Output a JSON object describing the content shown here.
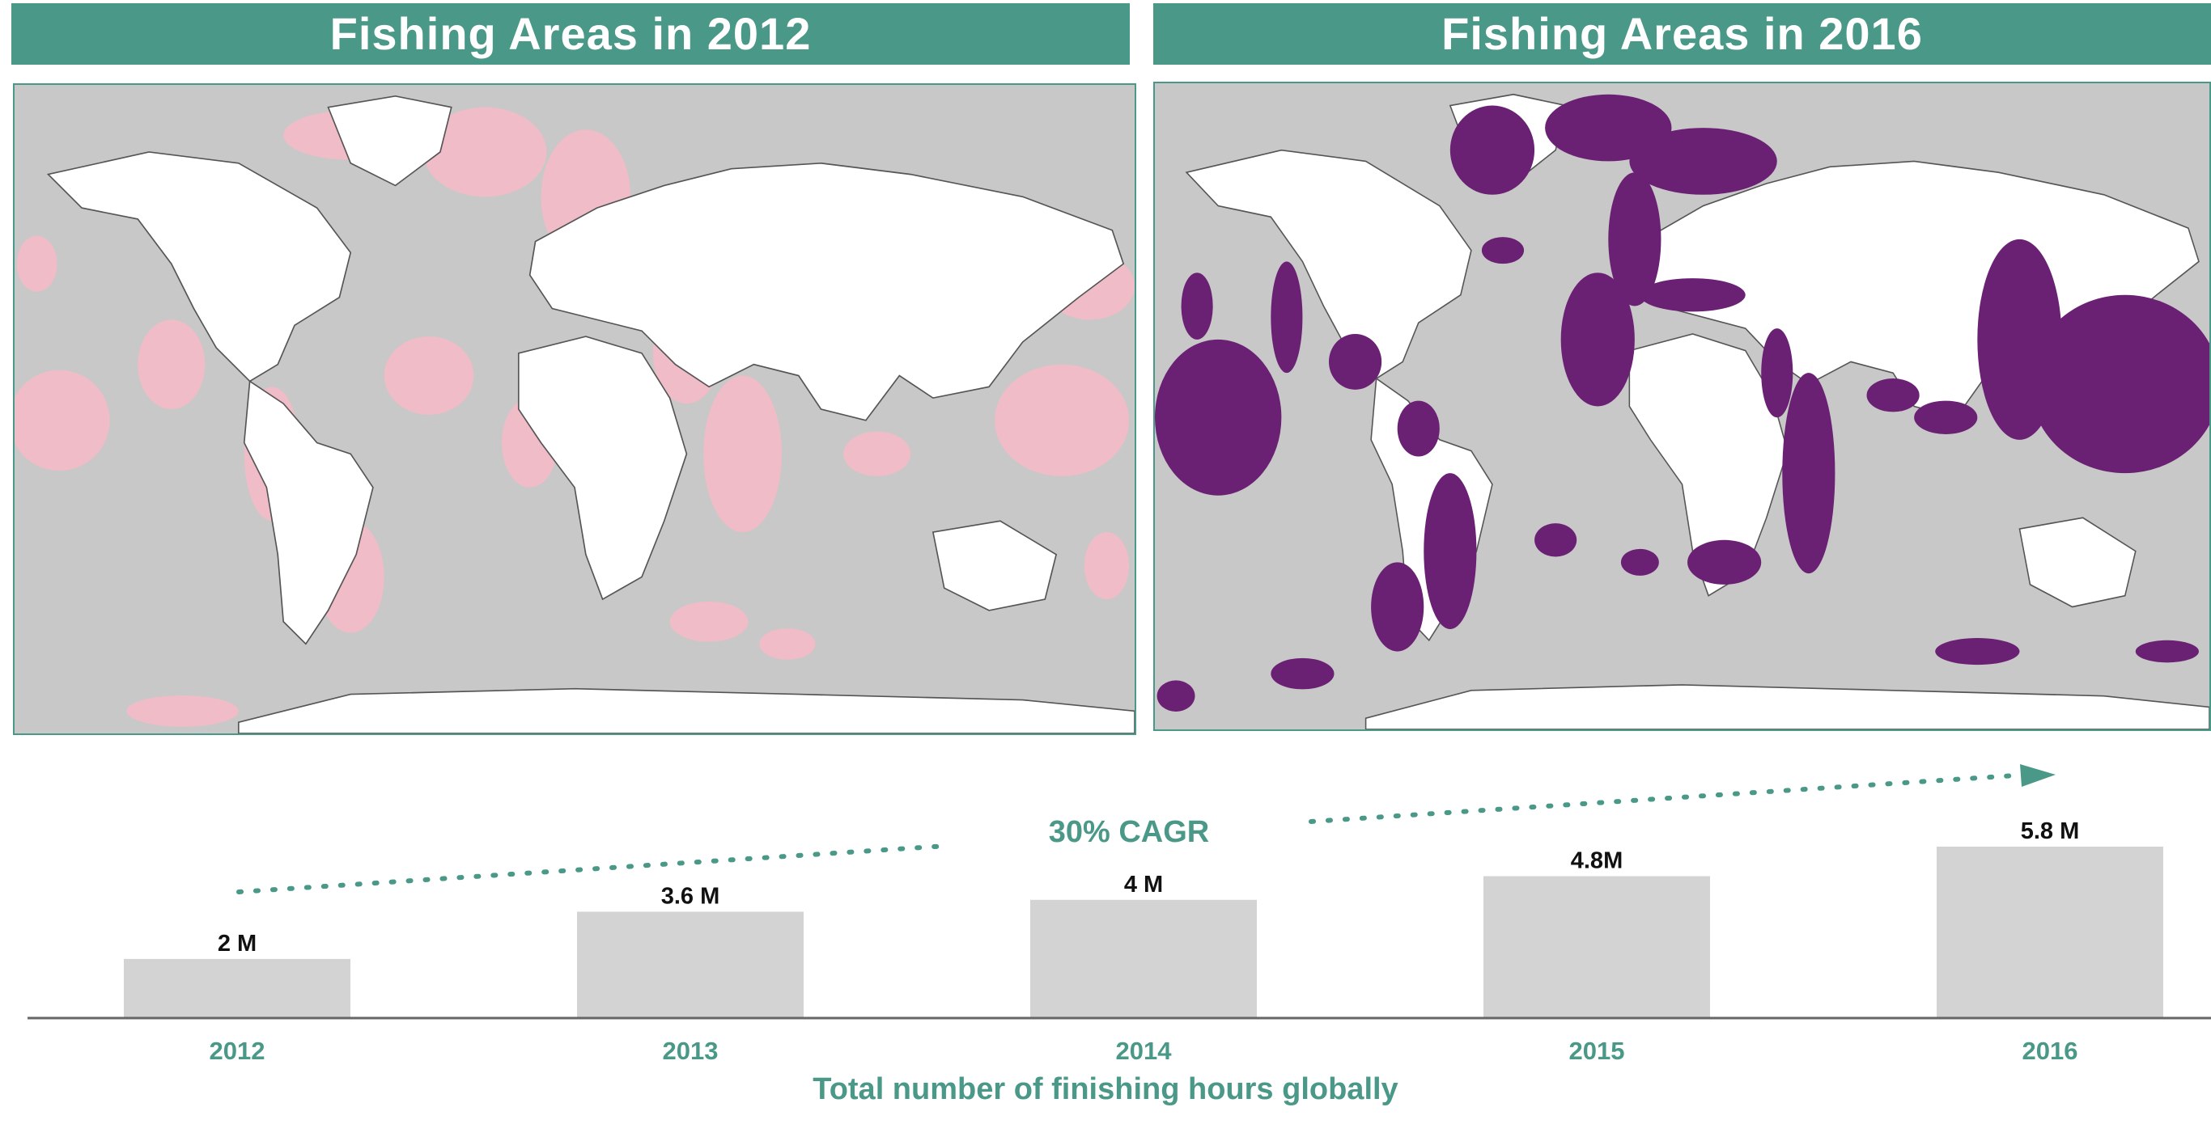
{
  "maps": {
    "left": {
      "title": "Fishing Areas in 2012",
      "overlay_color": "#f2bcc7"
    },
    "right": {
      "title": "Fishing Areas in 2016",
      "overlay_color": "#6a2073"
    },
    "land_color": "#ffffff",
    "ocean_color": "#c8c8c8",
    "banner_color": "#4a9887"
  },
  "chart_data": {
    "type": "bar",
    "categories": [
      "2012",
      "2013",
      "2014",
      "2015",
      "2016"
    ],
    "values": [
      2,
      3.6,
      4,
      4.8,
      5.8
    ],
    "value_labels": [
      "2 M",
      "3.6 M",
      "4 M",
      "4.8M",
      "5.8 M"
    ],
    "xlabel": "Total number of finishing hours globally",
    "ylabel": "",
    "ylim": [
      0,
      5.8
    ],
    "annotation": "30% CAGR",
    "bar_color": "#d3d3d3",
    "accent_color": "#4a9887"
  }
}
